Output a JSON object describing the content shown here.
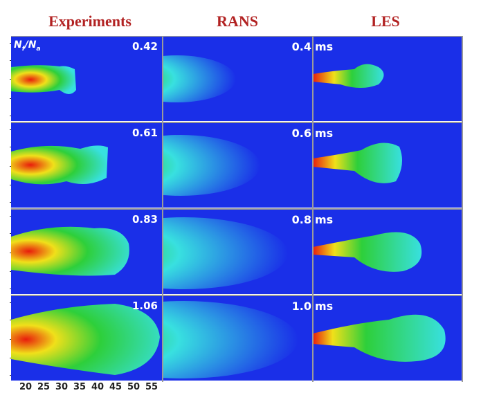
{
  "columns": {
    "experiments": "Experiments",
    "rans": "RANS",
    "les": "LES"
  },
  "ratio_label": {
    "n": "N",
    "f": "f",
    "slash": "/",
    "a": "a"
  },
  "rows": [
    {
      "ratio": "0.42",
      "time": "0.4",
      "unit": "ms"
    },
    {
      "ratio": "0.61",
      "time": "0.6",
      "unit": "ms"
    },
    {
      "ratio": "0.83",
      "time": "0.8",
      "unit": "ms"
    },
    {
      "ratio": "1.06",
      "time": "1.0",
      "unit": "ms"
    }
  ],
  "x_ticks": [
    "20",
    "25",
    "30",
    "35",
    "40",
    "45",
    "50",
    "55"
  ],
  "colors": {
    "background_blue": "#1a2fe8",
    "title_red": "#b22222",
    "core_red": "#e81c0c",
    "yellow": "#f0e01a",
    "green": "#2ecf3a",
    "cyan": "#38e0e0"
  }
}
